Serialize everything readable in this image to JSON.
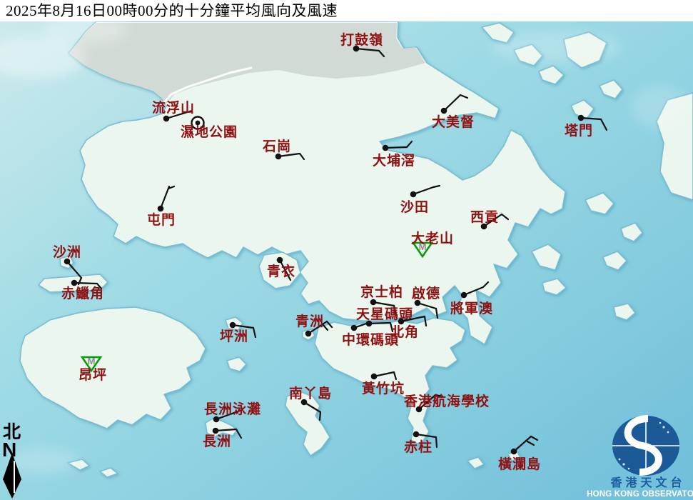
{
  "title": "2025年8月16日00時00分的十分鐘平均風向及風速",
  "compass": {
    "zh": "北",
    "en": "N"
  },
  "logo": {
    "zh": "香港天文台",
    "en": "HONG KONG OBSERVATORY"
  },
  "symbols": {
    "no_data_letter": "M"
  },
  "colors": {
    "title_bg": "#ffffff",
    "title_fg": "#000000",
    "sea_top_left": "#cfeaec",
    "sea_mid1": "#a2dce6",
    "sea_mid2": "#8bd0e0",
    "sea_bottom_right": "#6fbeda",
    "land": "#eaf6ee",
    "shenzhen_urban": "#cfd9d3",
    "coast_stroke": "#7cbcd0",
    "river": "#ffffff",
    "label": "#8f1111",
    "barb": "#111111",
    "no_data_green": "#0a9a0a",
    "no_data_m": "#8a8a8a",
    "compass": "#000000",
    "logo_blue": "#1b5a96",
    "logo_text_zh": "#1c5c9e",
    "logo_text_en": "#ffffff"
  },
  "stations": [
    {
      "id": "ta-kwu-ling",
      "name": "打鼓嶺",
      "type": "wind",
      "dot": [
        499,
        68
      ],
      "segs": [
        [
          499,
          68,
          531,
          71
        ],
        [
          531,
          71,
          538,
          79
        ]
      ],
      "label": [
        477,
        62
      ]
    },
    {
      "id": "lau-fau-shan",
      "name": "流浮山",
      "type": "wind",
      "dot": [
        233,
        166
      ],
      "segs": [
        [
          233,
          166,
          269,
          155
        ]
      ],
      "label": [
        213,
        157
      ]
    },
    {
      "id": "wetland-park",
      "name": "濕地公園",
      "type": "calm",
      "dot": [
        277,
        172
      ],
      "label": [
        253,
        191
      ]
    },
    {
      "id": "shek-kong",
      "name": "石崗",
      "type": "wind",
      "dot": [
        390,
        219
      ],
      "segs": [
        [
          390,
          219,
          420,
          215
        ],
        [
          420,
          215,
          426,
          223
        ]
      ],
      "label": [
        368,
        211
      ]
    },
    {
      "id": "tai-po-kau",
      "name": "大埔滘",
      "type": "wind",
      "dot": [
        540,
        207
      ],
      "segs": [
        [
          540,
          207,
          570,
          206
        ],
        [
          570,
          206,
          577,
          198
        ]
      ],
      "label": [
        522,
        231
      ]
    },
    {
      "id": "tai-mei-tuk",
      "name": "大美督",
      "type": "wind",
      "dot": [
        622,
        155
      ],
      "segs": [
        [
          622,
          155,
          645,
          133
        ],
        [
          645,
          133,
          655,
          137
        ]
      ],
      "label": [
        605,
        177
      ]
    },
    {
      "id": "tap-mun",
      "name": "塔門",
      "type": "wind",
      "dot": [
        814,
        165
      ],
      "segs": [
        [
          814,
          165,
          842,
          167
        ],
        [
          842,
          167,
          850,
          182
        ]
      ],
      "label": [
        791,
        189
      ]
    },
    {
      "id": "sha-tin",
      "name": "沙田",
      "type": "wind",
      "dot": [
        579,
        272
      ],
      "segs": [
        [
          579,
          272,
          607,
          262
        ],
        [
          607,
          262,
          616,
          260
        ]
      ],
      "label": [
        561,
        296
      ]
    },
    {
      "id": "sai-kung",
      "name": "西貢",
      "type": "wind",
      "dot": [
        678,
        317
      ],
      "segs": [
        [
          678,
          317,
          703,
          300
        ],
        [
          703,
          300,
          712,
          307
        ]
      ],
      "label": [
        659,
        310
      ]
    },
    {
      "id": "tates-cairn",
      "name": "大老山",
      "type": "nodata",
      "dot": [
        592,
        349
      ],
      "label": [
        576,
        340
      ]
    },
    {
      "id": "tuen-mun",
      "name": "屯門",
      "type": "wind",
      "dot": [
        225,
        292
      ],
      "segs": [
        [
          225,
          292,
          237,
          261
        ],
        [
          236,
          264,
          244,
          261
        ]
      ],
      "label": [
        206,
        314
      ]
    },
    {
      "id": "sha-chau",
      "name": "沙洲",
      "type": "wind",
      "dot": [
        94,
        366
      ],
      "segs": [
        [
          94,
          366,
          114,
          389
        ],
        [
          114,
          389,
          110,
          398
        ]
      ],
      "label": [
        74,
        359
      ]
    },
    {
      "id": "chek-lap-kok",
      "name": "赤鱲角",
      "type": "wind",
      "dot": [
        104,
        396
      ],
      "segs": [
        [
          104,
          396,
          136,
          397
        ],
        [
          136,
          397,
          142,
          404
        ]
      ],
      "label": [
        86,
        417
      ]
    },
    {
      "id": "tsing-yi",
      "name": "青衣",
      "type": "wind",
      "dot": [
        392,
        364
      ],
      "segs": [
        [
          392,
          364,
          407,
          392
        ]
      ],
      "label": [
        374,
        386
      ]
    },
    {
      "id": "kings-park",
      "name": "京士柏",
      "type": "wind",
      "dot": [
        523,
        423
      ],
      "segs": [
        [
          523,
          423,
          552,
          428
        ],
        [
          552,
          428,
          555,
          441
        ]
      ],
      "label": [
        505,
        415
      ]
    },
    {
      "id": "kai-tak",
      "name": "啟德",
      "type": "wind",
      "dot": [
        585,
        424
      ],
      "segs": [
        [
          585,
          424,
          611,
          432
        ],
        [
          611,
          432,
          613,
          445
        ]
      ],
      "label": [
        577,
        417
      ]
    },
    {
      "id": "tseung-kwan-o",
      "name": "將軍澳",
      "type": "wind",
      "dot": [
        650,
        413
      ],
      "segs": [
        [
          650,
          413,
          677,
          402
        ],
        [
          677,
          402,
          684,
          395
        ]
      ],
      "label": [
        631,
        438
      ]
    },
    {
      "id": "star-ferry-pier",
      "name": "天星碼頭",
      "type": "wind",
      "dot": [
        517,
        453
      ],
      "segs": [
        [
          517,
          453,
          547,
          452
        ],
        [
          547,
          452,
          550,
          464
        ]
      ],
      "label": [
        499,
        446
      ]
    },
    {
      "id": "central-pier",
      "name": "中環碼頭",
      "type": "wind",
      "dot": [
        496,
        459
      ],
      "segs": [
        [
          496,
          459,
          516,
          452
        ]
      ],
      "label": [
        479,
        482
      ]
    },
    {
      "id": "north-point",
      "name": "北角",
      "type": "wind",
      "dot": [
        562,
        450
      ],
      "segs": [
        [
          562,
          450,
          595,
          443
        ],
        [
          595,
          443,
          597,
          456
        ]
      ],
      "label": [
        547,
        471
      ]
    },
    {
      "id": "green-island",
      "name": "青洲",
      "type": "wind",
      "dot": [
        432,
        467
      ],
      "segs": [
        [
          432,
          467,
          458,
          450
        ],
        [
          458,
          450,
          465,
          458
        ],
        [
          452,
          454,
          459,
          462
        ]
      ],
      "label": [
        414,
        456
      ]
    },
    {
      "id": "wong-chuk-hang",
      "name": "黃竹坑",
      "type": "wind",
      "dot": [
        524,
        527
      ],
      "segs": [
        [
          524,
          527,
          552,
          521
        ],
        [
          552,
          521,
          555,
          531
        ]
      ],
      "label": [
        507,
        550
      ]
    },
    {
      "id": "hk-sea-school",
      "name": "香港航海學校",
      "type": "wind",
      "dot": [
        587,
        573
      ],
      "segs": [
        [
          587,
          573,
          610,
          553
        ],
        [
          610,
          553,
          620,
          555
        ]
      ],
      "label": [
        566,
        568
      ]
    },
    {
      "id": "stanley",
      "name": "赤柱",
      "type": "wind",
      "dot": [
        583,
        608
      ],
      "segs": [
        [
          583,
          608,
          611,
          612
        ],
        [
          611,
          612,
          612,
          626
        ]
      ],
      "label": [
        566,
        632
      ]
    },
    {
      "id": "lamma-island",
      "name": "南丫島",
      "type": "wind",
      "dot": [
        426,
        563
      ],
      "segs": [
        [
          426,
          563,
          449,
          577
        ],
        [
          449,
          577,
          448,
          588
        ]
      ],
      "label": [
        405,
        557
      ]
    },
    {
      "id": "cheung-chau-beach",
      "name": "長洲泳灘",
      "type": "wind",
      "dot": [
        303,
        587
      ],
      "segs": [
        [
          303,
          587,
          336,
          575
        ]
      ],
      "label": [
        286,
        579
      ]
    },
    {
      "id": "cheung-chau",
      "name": "長洲",
      "type": "wind",
      "dot": [
        302,
        603
      ],
      "segs": [
        [
          302,
          603,
          331,
          601
        ],
        [
          331,
          601,
          338,
          613
        ]
      ],
      "label": [
        284,
        624
      ]
    },
    {
      "id": "peng-chau",
      "name": "坪洲",
      "type": "wind",
      "dot": [
        326,
        455
      ],
      "segs": [
        [
          326,
          455,
          355,
          459
        ],
        [
          355,
          459,
          358,
          472
        ]
      ],
      "label": [
        308,
        477
      ]
    },
    {
      "id": "waglan-island",
      "name": "橫瀾島",
      "type": "wind",
      "dot": [
        720,
        632
      ],
      "segs": [
        [
          720,
          632,
          744,
          611
        ],
        [
          744,
          611,
          753,
          616
        ],
        [
          739,
          618,
          748,
          623
        ]
      ],
      "label": [
        698,
        656
      ]
    },
    {
      "id": "ngong-ping",
      "name": "昂坪",
      "type": "nodata",
      "dot": [
        128,
        509
      ],
      "label": [
        110,
        531
      ]
    }
  ]
}
